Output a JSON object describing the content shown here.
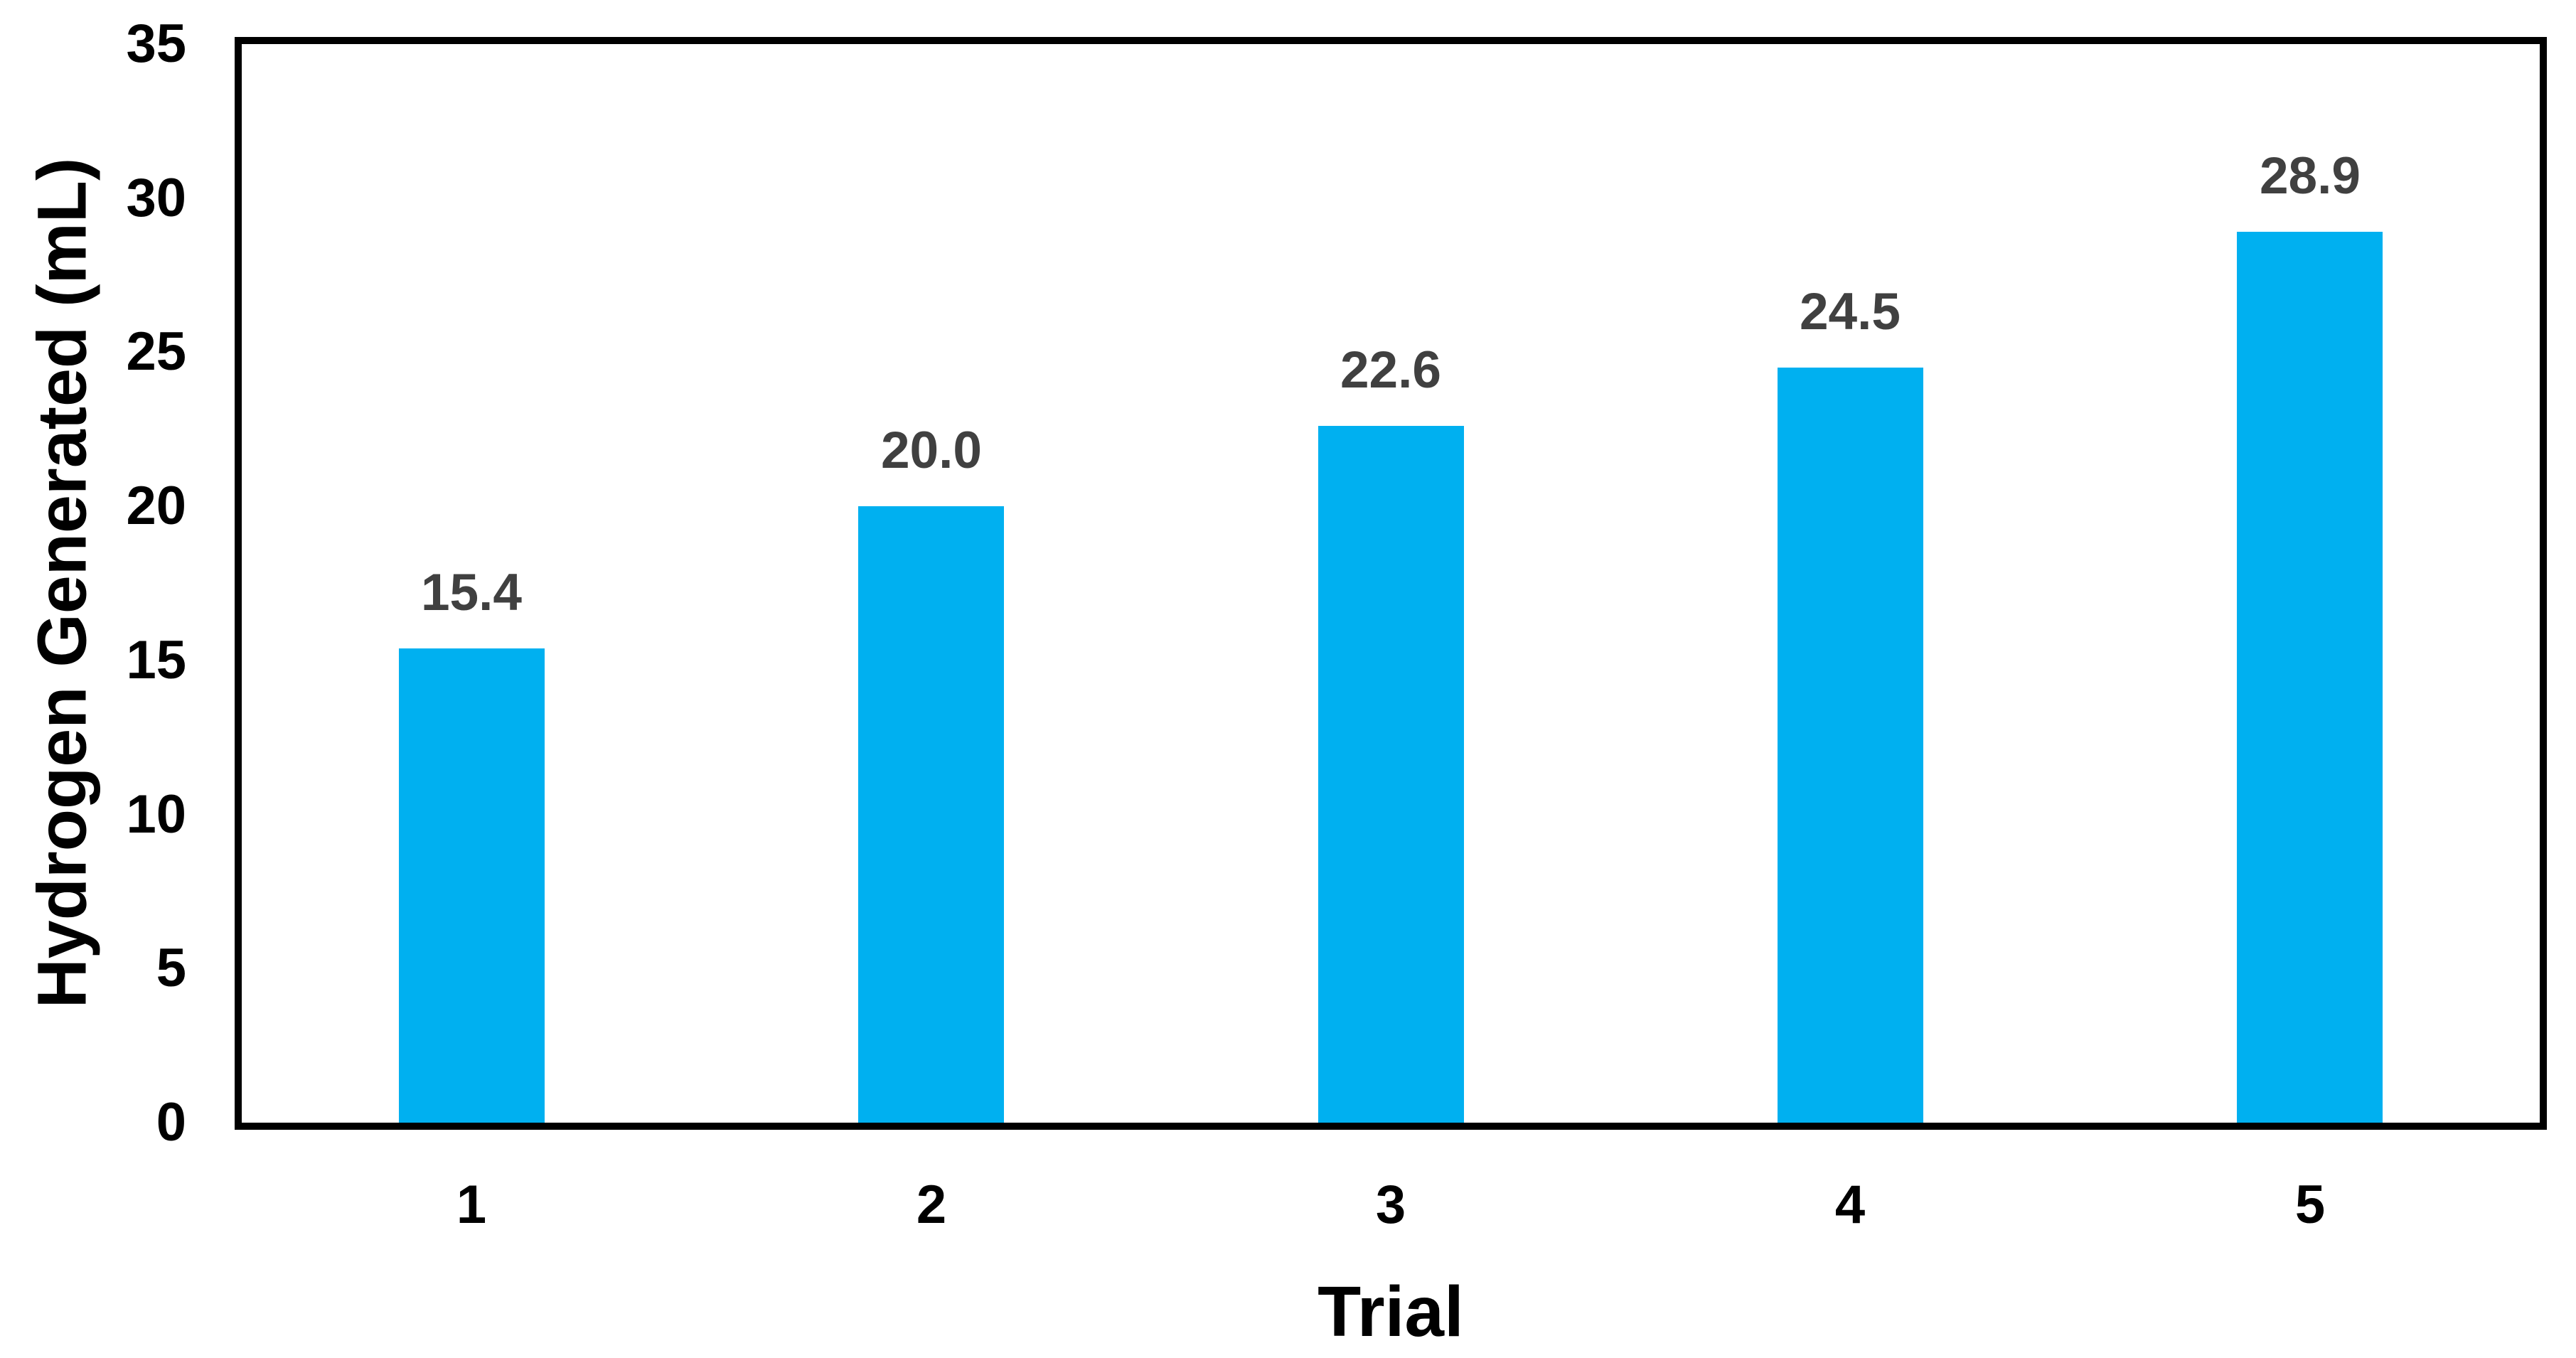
{
  "chart_data": {
    "type": "bar",
    "title": "",
    "xlabel": "Trial",
    "ylabel": "Hydrogen Generated (mL)",
    "categories": [
      "1",
      "2",
      "3",
      "4",
      "5"
    ],
    "values": [
      15.4,
      20.0,
      22.6,
      24.5,
      28.9
    ],
    "data_labels": [
      "15.4",
      "20.0",
      "22.6",
      "24.5",
      "28.9"
    ],
    "ylim": [
      0,
      35
    ],
    "y_ticks": [
      0,
      5,
      10,
      15,
      20,
      25,
      30,
      35
    ],
    "grid": false,
    "legend_position": "none",
    "colors": {
      "bar": "#00B0F0",
      "data_label": "#404040",
      "axis": "#000000",
      "background": "#FFFFFF"
    }
  }
}
